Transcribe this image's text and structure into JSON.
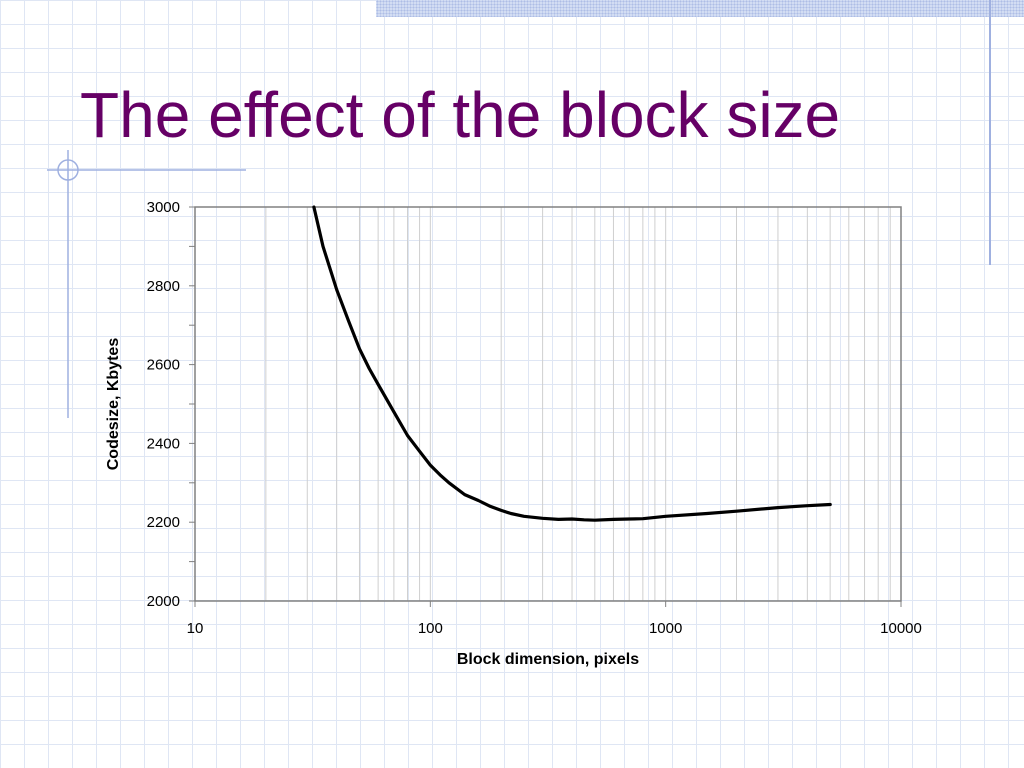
{
  "slide": {
    "title": "The effect of the block size"
  },
  "chart_data": {
    "type": "line",
    "title": "",
    "xlabel": "Block dimension, pixels",
    "ylabel": "Codesize, Kbytes",
    "x_scale": "log",
    "xlim": [
      10,
      10000
    ],
    "ylim": [
      2000,
      3000
    ],
    "x_ticks": [
      10,
      100,
      1000,
      10000
    ],
    "x_tick_labels": [
      "10",
      "100",
      "1000",
      "10000"
    ],
    "y_ticks": [
      2000,
      2200,
      2400,
      2600,
      2800,
      3000
    ],
    "y_tick_labels": [
      "2000",
      "2200",
      "2400",
      "2600",
      "2800",
      "3000"
    ],
    "grid": true,
    "legend": "none",
    "line_color": "#000000",
    "series": [
      {
        "x": [
          32,
          35,
          40,
          45,
          50,
          55,
          60,
          70,
          80,
          90,
          100,
          110,
          120,
          140,
          160,
          180,
          200,
          220,
          250,
          300,
          350,
          400,
          450,
          500,
          600,
          700,
          800,
          1000,
          1500,
          2000,
          3000,
          4000,
          5000
        ],
        "y": [
          3000,
          2900,
          2790,
          2710,
          2640,
          2590,
          2550,
          2480,
          2420,
          2380,
          2345,
          2320,
          2300,
          2270,
          2255,
          2240,
          2230,
          2222,
          2215,
          2210,
          2207,
          2208,
          2206,
          2205,
          2207,
          2208,
          2209,
          2215,
          2222,
          2228,
          2237,
          2242,
          2245
        ]
      }
    ]
  }
}
